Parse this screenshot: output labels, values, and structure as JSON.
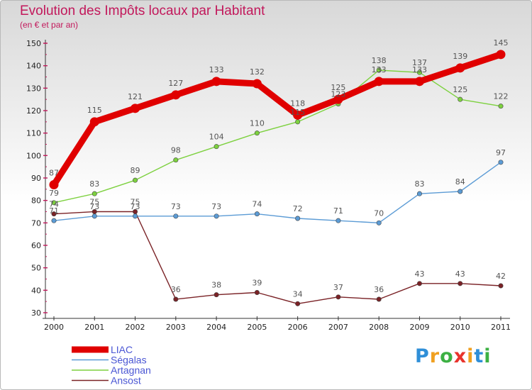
{
  "chart_data": {
    "type": "line",
    "title": "Evolution des Impôts locaux par Habitant",
    "subtitle": "(en € et par an)",
    "xlabel": "",
    "ylabel": "",
    "ylim": [
      30,
      150
    ],
    "yticks": [
      30,
      40,
      50,
      60,
      70,
      80,
      90,
      100,
      110,
      120,
      130,
      140,
      150
    ],
    "categories": [
      "2000",
      "2001",
      "2002",
      "2003",
      "2004",
      "2005",
      "2006",
      "2007",
      "2008",
      "2009",
      "2010",
      "2011"
    ],
    "grid": false,
    "legend_position": "bottom-left",
    "series": [
      {
        "name": "LIAC",
        "color": "#e00000",
        "values": [
          87,
          115,
          121,
          127,
          133,
          132,
          118,
          125,
          133,
          133,
          139,
          145
        ]
      },
      {
        "name": "Ségalas",
        "color": "#5b9bd5",
        "values": [
          71,
          73,
          73,
          73,
          73,
          74,
          72,
          71,
          70,
          83,
          84,
          97
        ]
      },
      {
        "name": "Artagnan",
        "color": "#7dd13f",
        "values": [
          79,
          83,
          89,
          98,
          104,
          110,
          115,
          123,
          138,
          137,
          125,
          122
        ]
      },
      {
        "name": "Ansost",
        "color": "#7a2226",
        "values": [
          74,
          75,
          75,
          36,
          38,
          39,
          34,
          37,
          36,
          43,
          43,
          42
        ]
      }
    ]
  },
  "logo": {
    "letters": [
      "P",
      "r",
      "o",
      "x",
      "i",
      "t",
      "i"
    ],
    "colors": [
      "#2f8fd8",
      "#f0a020",
      "#3cb043",
      "#e8332c",
      "#f0a020",
      "#2f8fd8",
      "#3cb043"
    ]
  }
}
